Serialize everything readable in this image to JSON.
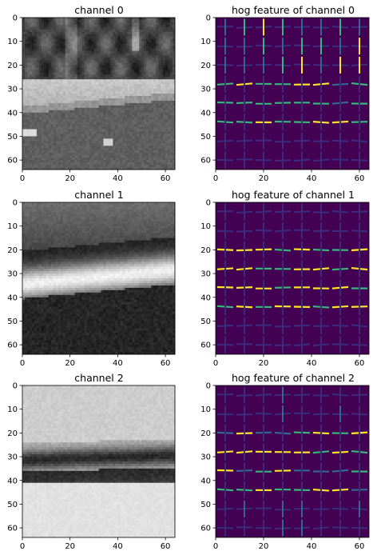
{
  "panels": [
    {
      "id": "ch0",
      "title": "channel 0",
      "kind": "gray",
      "variant": 0
    },
    {
      "id": "hog0",
      "title": "hog feature of channel 0",
      "kind": "hog",
      "variant": 0
    },
    {
      "id": "ch1",
      "title": "channel 1",
      "kind": "gray",
      "variant": 1
    },
    {
      "id": "hog1",
      "title": "hog feature of channel 1",
      "kind": "hog",
      "variant": 1
    },
    {
      "id": "ch2",
      "title": "channel 2",
      "kind": "gray",
      "variant": 2
    },
    {
      "id": "hog2",
      "title": "hog feature of channel 2",
      "kind": "hog",
      "variant": 2
    }
  ],
  "x_ticks": [
    "0",
    "20",
    "40",
    "60"
  ],
  "y_ticks": [
    "0",
    "10",
    "20",
    "30",
    "40",
    "50",
    "60"
  ],
  "axis_range": [
    0,
    64
  ],
  "colors": {
    "hog_background": "#440154",
    "hog_mid": "#31688e",
    "hog_teal": "#35b779",
    "hog_bright": "#fde725"
  }
}
